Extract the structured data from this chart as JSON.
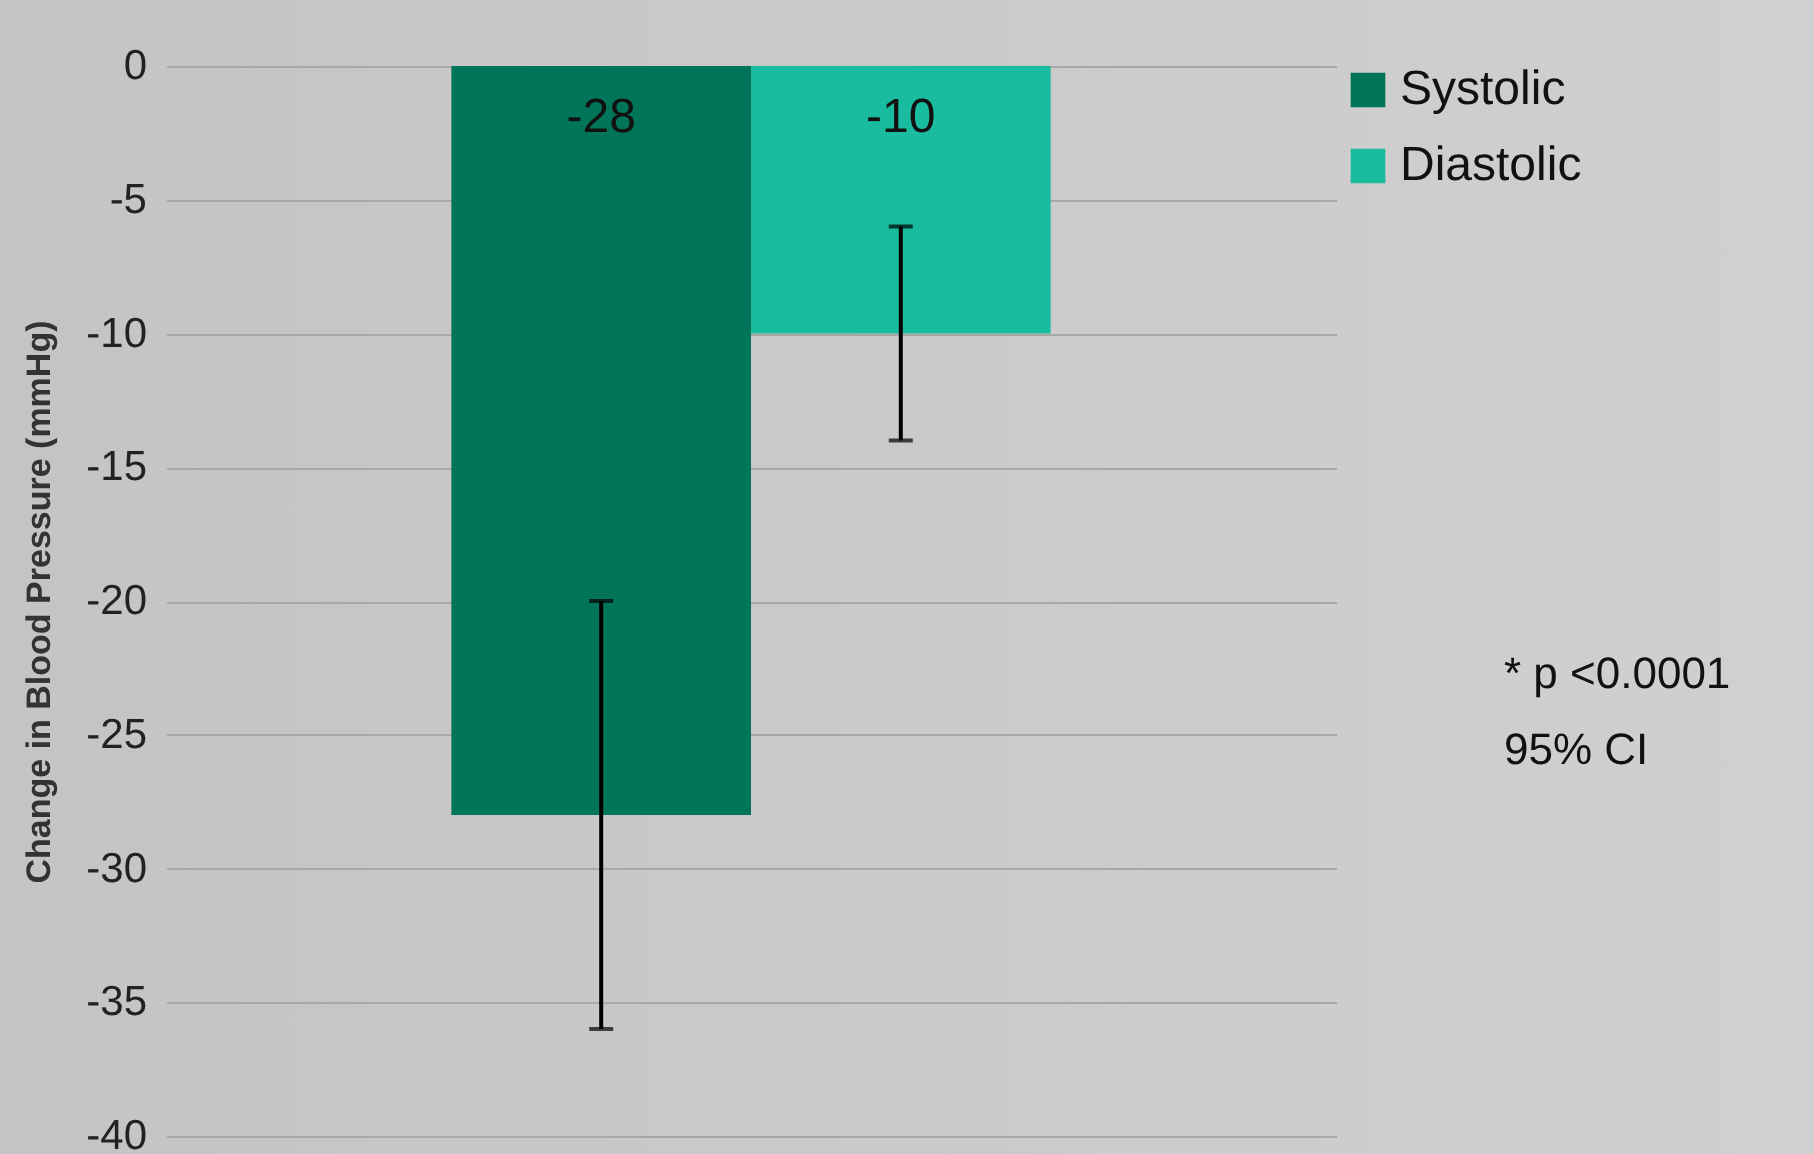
{
  "chart_data": {
    "type": "bar",
    "ylabel": "Change in Blood Pressure (mmHg)",
    "categories": [
      null
    ],
    "series": [
      {
        "name": "Systolic",
        "color": "#00755a",
        "values": [
          -28
        ],
        "errors": [
          [
            -36,
            -20
          ]
        ]
      },
      {
        "name": "Diastolic",
        "color": "#1abc9f",
        "values": [
          -10
        ],
        "errors": [
          [
            -14,
            -6
          ]
        ]
      }
    ],
    "ylim": [
      -40,
      0
    ],
    "yticks": [
      -40,
      -35,
      -30,
      -25,
      -20,
      -15,
      -10,
      -5,
      0
    ],
    "grid": "y",
    "legend": "right",
    "data_labels": true,
    "annotations": [
      "* p <0.0001",
      "95% CI"
    ]
  }
}
